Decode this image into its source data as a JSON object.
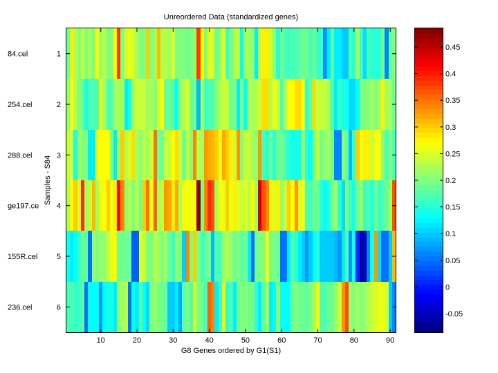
{
  "chart_data": {
    "type": "heatmap",
    "title": "Unreordered Data (standardized genes)",
    "xlabel": "G8 Genes ordered by G1(S1)",
    "ylabel": "Samples - S84",
    "colormap": "jet",
    "clim": [
      -0.085,
      0.485
    ],
    "grid": false,
    "xlim": [
      0.5,
      91.5
    ],
    "ylim": [
      0.5,
      6.5
    ],
    "x_ticks": [
      10,
      20,
      30,
      40,
      50,
      60,
      70,
      80,
      90
    ],
    "y_ticks": [
      1,
      2,
      3,
      4,
      5,
      6
    ],
    "row_labels": [
      "84.cel",
      "254.cel",
      "288.cel",
      "ge197.ce",
      "155R.cel",
      "236.cel"
    ],
    "colorbar": {
      "ticks": [
        -0.05,
        0,
        0.05,
        0.1,
        0.15,
        0.2,
        0.25,
        0.3,
        0.35,
        0.4,
        0.45
      ],
      "tick_labels": [
        "-0.05",
        "0",
        "0.05",
        "0.1",
        "0.15",
        "0.2",
        "0.25",
        "0.3",
        "0.35",
        "0.4",
        "0.45"
      ],
      "location": "right"
    },
    "rows": [
      [
        0.19,
        0.28,
        0.23,
        0.2,
        0.24,
        0.2,
        0.22,
        0.2,
        0.27,
        0.21,
        0.23,
        0.2,
        0.2,
        0.27,
        0.38,
        0.2,
        0.25,
        0.26,
        0.25,
        0.22,
        0.2,
        0.2,
        0.3,
        0.2,
        0.22,
        0.31,
        0.23,
        0.23,
        0.22,
        0.25,
        0.2,
        0.2,
        0.2,
        0.19,
        0.2,
        0.21,
        0.38,
        0.27,
        0.2,
        0.26,
        0.25,
        0.19,
        0.21,
        0.26,
        0.16,
        0.19,
        0.23,
        0.23,
        0.13,
        0.22,
        0.22,
        0.21,
        0.12,
        0.24,
        0.28,
        0.28,
        0.24,
        0.21,
        0.15,
        0.19,
        0.17,
        0.16,
        0.17,
        0.17,
        0.18,
        0.19,
        0.19,
        0.17,
        0.19,
        0.16,
        0.16,
        0.07,
        0.12,
        0.18,
        0.12,
        0.12,
        0.1,
        0.1,
        0.17,
        0.15,
        0.22,
        0.16,
        0.11,
        0.17,
        0.15,
        0.15,
        0.15,
        0.19,
        0.06,
        0.18,
        0.2
      ],
      [
        0.21,
        0.27,
        0.23,
        0.2,
        0.19,
        0.14,
        0.17,
        0.17,
        0.17,
        0.26,
        0.22,
        0.17,
        0.17,
        0.22,
        0.22,
        0.22,
        0.12,
        0.14,
        0.22,
        0.24,
        0.24,
        0.24,
        0.22,
        0.22,
        0.2,
        0.25,
        0.27,
        0.18,
        0.19,
        0.17,
        0.13,
        0.21,
        0.23,
        0.25,
        0.19,
        0.19,
        0.09,
        0.22,
        0.16,
        0.17,
        0.17,
        0.2,
        0.23,
        0.24,
        0.24,
        0.19,
        0.2,
        0.12,
        0.2,
        0.13,
        0.23,
        0.22,
        0.23,
        0.24,
        0.29,
        0.29,
        0.23,
        0.26,
        0.24,
        0.17,
        0.22,
        0.27,
        0.27,
        0.29,
        0.29,
        0.27,
        0.15,
        0.19,
        0.29,
        0.24,
        0.24,
        0.24,
        0.22,
        0.17,
        0.12,
        0.16,
        0.14,
        0.14,
        0.11,
        0.11,
        0.13,
        0.2,
        0.2,
        0.2,
        0.22,
        0.2,
        0.22,
        0.28,
        0.22,
        0.22,
        0.19
      ],
      [
        0.24,
        0.25,
        0.14,
        0.22,
        0.2,
        0.2,
        0.12,
        0.12,
        0.26,
        0.27,
        0.27,
        0.27,
        0.2,
        0.12,
        0.22,
        0.3,
        0.23,
        0.25,
        0.29,
        0.22,
        0.21,
        0.23,
        0.22,
        0.24,
        0.35,
        0.19,
        0.19,
        0.24,
        0.24,
        0.27,
        0.29,
        0.24,
        0.19,
        0.24,
        0.2,
        0.34,
        0.23,
        0.22,
        0.33,
        0.32,
        0.31,
        0.3,
        0.27,
        0.32,
        0.3,
        0.28,
        0.24,
        0.33,
        0.2,
        0.24,
        0.24,
        0.22,
        0.21,
        0.33,
        0.17,
        0.15,
        0.19,
        0.15,
        0.19,
        0.19,
        0.17,
        0.15,
        0.14,
        0.14,
        0.14,
        0.22,
        0.15,
        0.13,
        0.2,
        0.24,
        0.19,
        0.21,
        0.22,
        0.19,
        0.06,
        0.06,
        0.21,
        0.18,
        0.09,
        0.16,
        0.3,
        0.26,
        0.28,
        0.28,
        0.24,
        0.27,
        0.27,
        0.21,
        0.17,
        0.2,
        0.17
      ],
      [
        0.23,
        0.27,
        0.3,
        0.25,
        0.39,
        0.22,
        0.24,
        0.31,
        0.22,
        0.26,
        0.27,
        0.3,
        0.26,
        0.28,
        0.41,
        0.34,
        0.21,
        0.23,
        0.2,
        0.23,
        0.19,
        0.3,
        0.35,
        0.26,
        0.36,
        0.22,
        0.24,
        0.33,
        0.32,
        0.28,
        0.32,
        0.23,
        0.26,
        0.27,
        0.26,
        0.27,
        0.48,
        0.2,
        0.34,
        0.39,
        0.37,
        0.22,
        0.27,
        0.26,
        0.3,
        0.26,
        0.28,
        0.25,
        0.24,
        0.25,
        0.23,
        0.27,
        0.22,
        0.44,
        0.37,
        0.34,
        0.28,
        0.25,
        0.28,
        0.21,
        0.24,
        0.3,
        0.27,
        0.33,
        0.25,
        0.27,
        0.17,
        0.17,
        0.19,
        0.19,
        0.15,
        0.13,
        0.15,
        0.19,
        0.22,
        0.15,
        0.11,
        0.2,
        0.16,
        0.14,
        0.19,
        0.22,
        0.16,
        0.17,
        0.15,
        0.19,
        0.16,
        0.17,
        0.19,
        0.22,
        0.37
      ],
      [
        0.14,
        0.12,
        0.13,
        0.16,
        0.19,
        0.18,
        0.05,
        0.21,
        0.2,
        0.21,
        0.21,
        0.24,
        0.26,
        0.27,
        0.19,
        0.19,
        0.19,
        0.19,
        0.04,
        0.04,
        0.25,
        0.24,
        0.2,
        0.2,
        0.23,
        0.22,
        0.2,
        0.22,
        0.18,
        0.16,
        0.21,
        0.2,
        0.1,
        0.34,
        0.2,
        0.3,
        0.2,
        0.16,
        0.18,
        0.2,
        0.09,
        0.17,
        0.17,
        0.21,
        0.23,
        0.21,
        0.19,
        0.2,
        0.18,
        0.19,
        0.12,
        0.05,
        0.19,
        0.2,
        0.2,
        0.27,
        0.19,
        0.2,
        0.19,
        0.05,
        0.05,
        0.12,
        0.17,
        0.15,
        0.12,
        0.1,
        0.07,
        0.1,
        0.13,
        0.15,
        0.1,
        0.1,
        0.1,
        0.1,
        0.09,
        0.07,
        0.12,
        0.17,
        0.07,
        0.14,
        0.01,
        -0.06,
        -0.06,
        0.06,
        0.14,
        0.33,
        0.11,
        0.05,
        0.05,
        0.1,
        0.31
      ],
      [
        0.17,
        0.17,
        0.16,
        0.16,
        0.18,
        0.05,
        0.13,
        0.13,
        0.13,
        0.07,
        0.13,
        0.14,
        0.14,
        0.12,
        0.21,
        0.22,
        0.23,
        0.05,
        0.13,
        0.12,
        0.18,
        0.13,
        0.11,
        0.2,
        0.21,
        0.2,
        0.19,
        0.19,
        0.1,
        0.1,
        0.12,
        0.08,
        0.18,
        0.2,
        0.17,
        0.25,
        0.2,
        0.19,
        0.16,
        0.36,
        0.34,
        0.12,
        0.16,
        0.28,
        0.15,
        0.17,
        0.12,
        0.19,
        0.2,
        0.2,
        0.19,
        0.2,
        0.15,
        0.12,
        0.18,
        0.23,
        0.12,
        0.13,
        0.21,
        0.13,
        0.13,
        0.13,
        0.19,
        0.2,
        0.19,
        0.19,
        0.18,
        0.2,
        0.22,
        0.27,
        0.17,
        0.17,
        0.19,
        0.19,
        0.21,
        0.24,
        0.33,
        0.37,
        0.21,
        0.2,
        0.22,
        0.2,
        0.21,
        0.23,
        0.24,
        0.25,
        0.26,
        0.26,
        0.25,
        0.1,
        0.06
      ]
    ]
  }
}
